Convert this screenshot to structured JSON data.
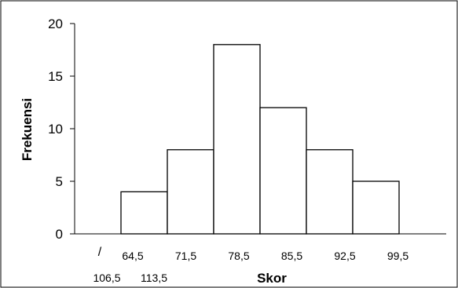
{
  "chart_data": {
    "type": "bar",
    "xlabel": "Skor",
    "ylabel": "Frekuensi",
    "ylim": [
      0,
      20
    ],
    "yticks": [
      0,
      5,
      10,
      15,
      20
    ],
    "x_tick_labels": [
      "64,5",
      "71,5",
      "78,5",
      "85,5",
      "92,5",
      "99,5",
      "106,5",
      "113,5"
    ],
    "x_axis_break_mark": "/",
    "categories": [
      "64,5-71,5",
      "71,5-78,5",
      "78,5-85,5",
      "85,5-92,5",
      "92,5-99,5",
      "99,5-106,5"
    ],
    "values": [
      4,
      8,
      18,
      12,
      8,
      5
    ],
    "bar_fill": "#ffffff",
    "bar_stroke": "#000000",
    "grid": false,
    "legend": "none"
  }
}
